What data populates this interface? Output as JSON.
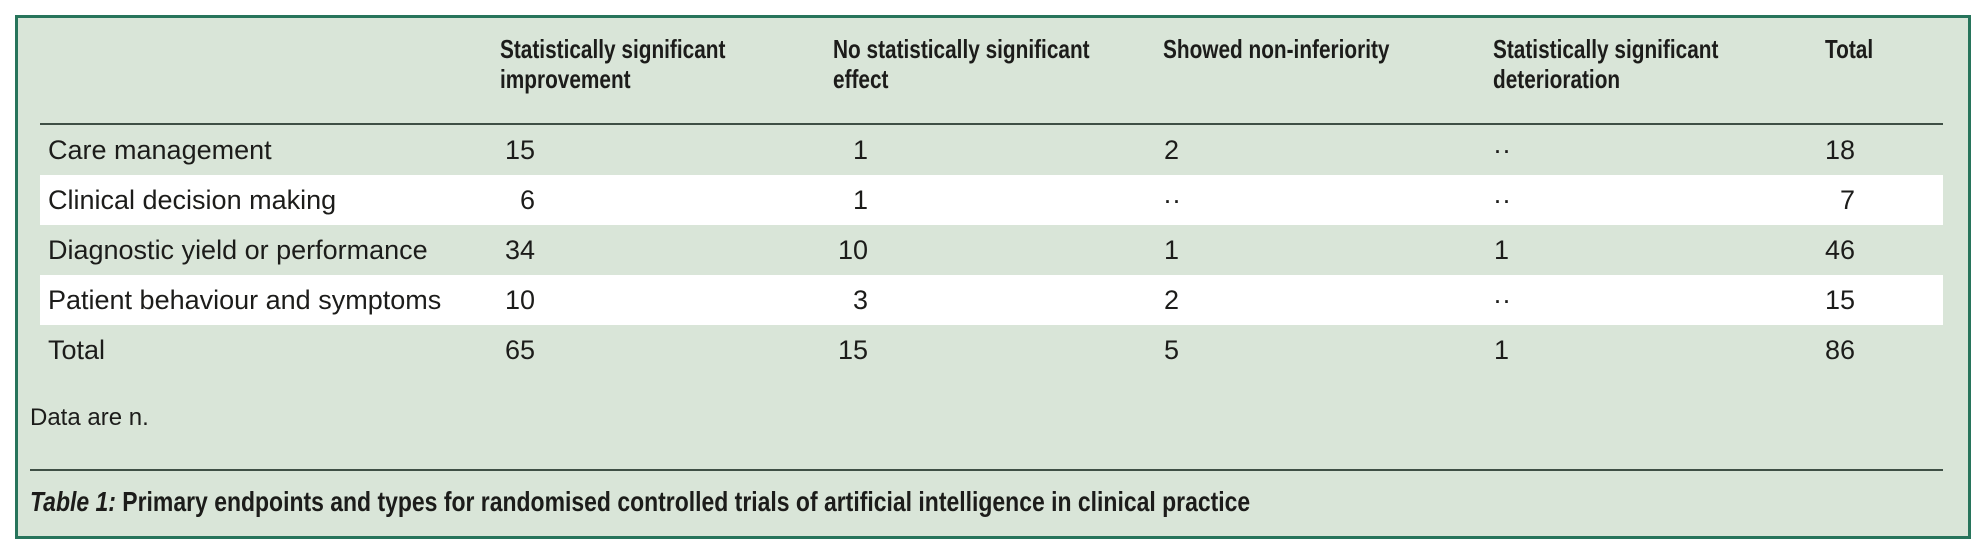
{
  "table": {
    "columns": [
      "",
      "Statistically significant improvement",
      "No statistically significant effect",
      "Showed non-inferiority",
      "Statistically significant deterioration",
      "Total"
    ],
    "rows": [
      {
        "label": "Care management",
        "values": [
          "15",
          "1",
          "2",
          "··",
          "18"
        ]
      },
      {
        "label": "Clinical decision making",
        "values": [
          "6",
          "1",
          "··",
          "··",
          "7"
        ]
      },
      {
        "label": "Diagnostic yield or performance",
        "values": [
          "34",
          "10",
          "1",
          "1",
          "46"
        ]
      },
      {
        "label": "Patient behaviour and symptoms",
        "values": [
          "10",
          "3",
          "2",
          "··",
          "15"
        ]
      },
      {
        "label": "Total",
        "values": [
          "65",
          "15",
          "5",
          "1",
          "86"
        ]
      }
    ],
    "footnote": "Data are n.",
    "caption_label": "Table 1:",
    "caption_text": "Primary endpoints and types for randomised controlled trials of artificial intelligence in clinical practice"
  },
  "colors": {
    "panel_background": "#d9e5d8",
    "panel_border": "#27745b",
    "stripe_row": "#ffffff",
    "rule": "#3f4f45",
    "text": "#1c1c1a"
  }
}
